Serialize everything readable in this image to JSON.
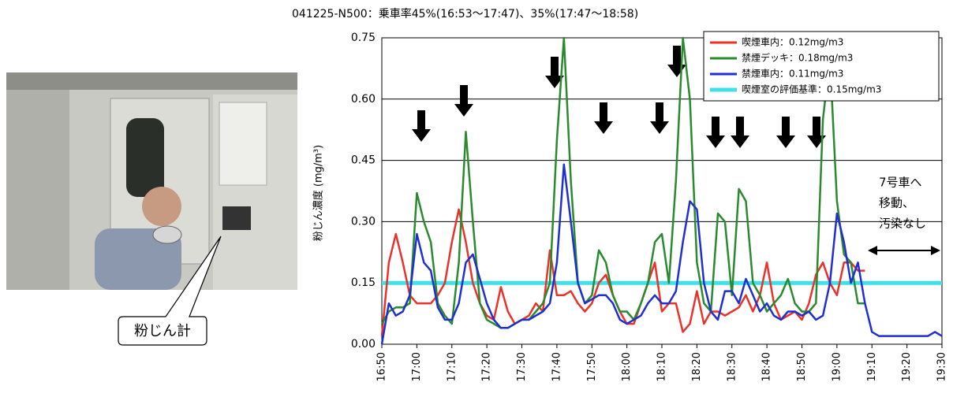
{
  "callout": "粉じん計",
  "chart_data": {
    "type": "line",
    "title": "041225-N500：乗車率45%(16:53〜17:47)、35%(17:47〜18:58)",
    "y_label": "粉じん濃度 (mg/m³)",
    "x": [
      "16:50",
      "16:52",
      "16:54",
      "16:56",
      "16:58",
      "17:00",
      "17:02",
      "17:04",
      "17:06",
      "17:08",
      "17:10",
      "17:12",
      "17:14",
      "17:16",
      "17:18",
      "17:20",
      "17:22",
      "17:24",
      "17:26",
      "17:28",
      "17:30",
      "17:32",
      "17:34",
      "17:36",
      "17:38",
      "17:40",
      "17:42",
      "17:44",
      "17:46",
      "17:48",
      "17:50",
      "17:52",
      "17:54",
      "17:56",
      "17:58",
      "18:00",
      "18:02",
      "18:04",
      "18:06",
      "18:08",
      "18:10",
      "18:12",
      "18:14",
      "18:16",
      "18:18",
      "18:20",
      "18:22",
      "18:24",
      "18:26",
      "18:28",
      "18:30",
      "18:32",
      "18:34",
      "18:36",
      "18:38",
      "18:40",
      "18:42",
      "18:44",
      "18:46",
      "18:48",
      "18:50",
      "18:52",
      "18:54",
      "18:56",
      "18:58",
      "19:00",
      "19:02",
      "19:04",
      "19:06",
      "19:08",
      "19:10",
      "19:12",
      "19:14",
      "19:16",
      "19:18",
      "19:20",
      "19:22",
      "19:24",
      "19:26",
      "19:28",
      "19:30"
    ],
    "xlim": [
      "16:50",
      "19:30"
    ],
    "xticks": [
      "16:50",
      "17:00",
      "17:10",
      "17:20",
      "17:30",
      "17:40",
      "17:50",
      "18:00",
      "18:10",
      "18:20",
      "18:30",
      "18:40",
      "18:50",
      "19:00",
      "19:10",
      "19:20",
      "19:30"
    ],
    "ylim": [
      0,
      0.75
    ],
    "yticks": [
      {
        "value": 0,
        "label": "0.00"
      },
      0.15,
      {
        "value": 0.3,
        "label": "0.30"
      },
      0.45,
      {
        "value": 0.6,
        "label": "0.60"
      },
      0.75
    ],
    "grid": true,
    "legend": "top-right",
    "series": [
      {
        "name": "喫煙車内：0.12mg/m3",
        "color": "#e8322a",
        "values": [
          0.02,
          0.2,
          0.27,
          0.2,
          0.12,
          0.1,
          0.1,
          0.1,
          0.12,
          0.15,
          0.25,
          0.33,
          0.25,
          0.15,
          0.1,
          0.07,
          0.06,
          0.14,
          0.08,
          0.05,
          0.06,
          0.07,
          0.1,
          0.08,
          0.23,
          0.12,
          0.12,
          0.13,
          0.1,
          0.08,
          0.1,
          0.15,
          0.17,
          0.12,
          0.08,
          0.05,
          0.05,
          0.1,
          0.15,
          0.2,
          0.08,
          0.1,
          0.1,
          0.03,
          0.05,
          0.13,
          0.05,
          0.08,
          0.08,
          0.07,
          0.08,
          0.09,
          0.12,
          0.08,
          0.12,
          0.2,
          0.1,
          0.06,
          0.07,
          0.08,
          0.06,
          0.1,
          0.17,
          0.2,
          0.15,
          0.12,
          0.2,
          0.2,
          0.18,
          0.18,
          null,
          null,
          null,
          null,
          null,
          null,
          null,
          null,
          null,
          null,
          null
        ]
      },
      {
        "name": "禁煙デッキ：0.18mg/m3",
        "color": "#2a8a2e",
        "values": [
          0.05,
          0.08,
          0.09,
          0.09,
          0.1,
          0.37,
          0.3,
          0.25,
          0.1,
          0.07,
          0.05,
          0.2,
          0.52,
          0.3,
          0.1,
          0.06,
          0.05,
          0.04,
          0.04,
          0.05,
          0.06,
          0.06,
          0.08,
          0.1,
          0.15,
          0.5,
          0.75,
          0.4,
          0.15,
          0.1,
          0.12,
          0.23,
          0.2,
          0.12,
          0.08,
          0.08,
          0.06,
          0.1,
          0.15,
          0.25,
          0.27,
          0.15,
          0.4,
          0.75,
          0.6,
          0.2,
          0.1,
          0.08,
          0.32,
          0.3,
          0.12,
          0.38,
          0.35,
          0.15,
          0.12,
          0.08,
          0.1,
          0.12,
          0.16,
          0.1,
          0.08,
          0.08,
          0.1,
          0.55,
          0.7,
          0.35,
          0.22,
          0.2,
          0.1,
          0.1,
          null,
          null,
          null,
          null,
          null,
          null,
          null,
          null,
          null,
          null,
          null
        ]
      },
      {
        "name": "禁煙車内：0.11mg/m3",
        "color": "#1f2fd0",
        "values": [
          0,
          0.1,
          0.07,
          0.08,
          0.12,
          0.27,
          0.2,
          0.18,
          0.09,
          0.06,
          0.06,
          0.1,
          0.2,
          0.22,
          0.16,
          0.1,
          0.06,
          0.04,
          0.04,
          0.05,
          0.06,
          0.06,
          0.07,
          0.08,
          0.1,
          0.2,
          0.44,
          0.3,
          0.15,
          0.1,
          0.11,
          0.12,
          0.12,
          0.1,
          0.06,
          0.05,
          0.06,
          0.07,
          0.1,
          0.12,
          0.1,
          0.1,
          0.13,
          0.25,
          0.35,
          0.33,
          0.15,
          0.08,
          0.06,
          0.13,
          0.13,
          0.1,
          0.16,
          0.12,
          0.08,
          0.1,
          0.07,
          0.06,
          0.08,
          0.08,
          0.07,
          0.08,
          0.06,
          0.07,
          0.15,
          0.32,
          0.25,
          0.15,
          0.2,
          0.1,
          0.03,
          0.02,
          0.02,
          0.02,
          0.02,
          0.02,
          0.02,
          0.02,
          0.02,
          0.03,
          0.02
        ]
      }
    ],
    "reference_lines": [
      {
        "name": "喫煙室の評価基準：0.15mg/m3",
        "color": "#40e0e8",
        "value": 0.15
      }
    ],
    "annotation": [
      "7号車へ",
      "移動、",
      "汚染なし"
    ]
  }
}
